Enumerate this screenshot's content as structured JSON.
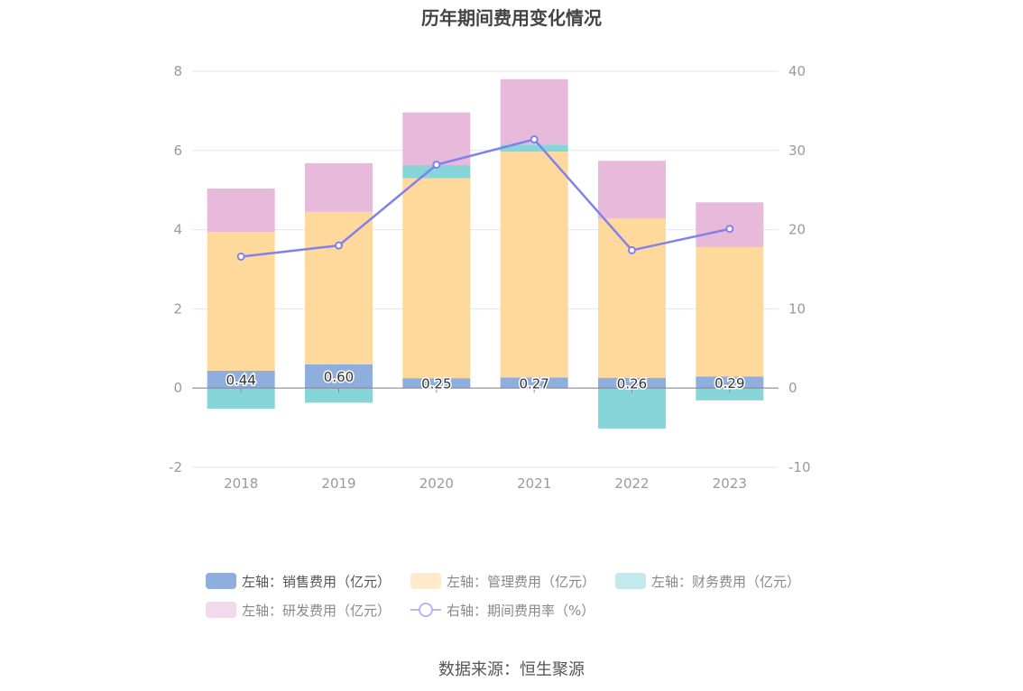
{
  "title": "历年期间费用变化情况",
  "source": "数据来源：恒生聚源",
  "colors": {
    "sales": "#8eaedd",
    "admin": "#ffd99c",
    "finance": "#86d5d9",
    "rd": "#e7b9db",
    "ratio": "#8080ee",
    "grid": "#e3e3f3",
    "axis_text": "#9a9a9a"
  },
  "legend": [
    {
      "label": "左轴：销售费用（亿元）",
      "color": "#8eaedd",
      "type": "bar",
      "active": true
    },
    {
      "label": "左轴：管理费用（亿元）",
      "color": "#ffeacb",
      "type": "bar",
      "active": false
    },
    {
      "label": "左轴：财务费用（亿元）",
      "color": "#c2eaec",
      "type": "bar",
      "active": false
    },
    {
      "label": "左轴：研发费用（亿元）",
      "color": "#f3d9ec",
      "type": "bar",
      "active": false
    },
    {
      "label": "右轴：期间费用率（%）",
      "color": "#b8b6f4",
      "type": "line",
      "active": false
    }
  ],
  "chart_data": {
    "type": "bar",
    "stacked": true,
    "categories": [
      "2018",
      "2019",
      "2020",
      "2021",
      "2022",
      "2023"
    ],
    "y_left": {
      "min": -2,
      "max": 8,
      "ticks": [
        "-2",
        "0",
        "2",
        "4",
        "6",
        "8"
      ]
    },
    "y_right": {
      "min": -10,
      "max": 40,
      "ticks": [
        "-10",
        "0",
        "10",
        "20",
        "30",
        "40"
      ]
    },
    "series": [
      {
        "name": "左轴：销售费用（亿元）",
        "axis": "left",
        "type": "bar",
        "values": [
          0.44,
          0.6,
          0.25,
          0.27,
          0.26,
          0.29
        ],
        "labels": [
          "0.44",
          "0.60",
          "0.25",
          "0.27",
          "0.26",
          "0.29"
        ]
      },
      {
        "name": "左轴：管理费用（亿元）",
        "axis": "left",
        "type": "bar",
        "values": [
          3.5,
          3.85,
          5.05,
          5.7,
          4.02,
          3.27
        ]
      },
      {
        "name": "左轴：财务费用（亿元）",
        "axis": "left",
        "type": "bar",
        "values": [
          -0.52,
          -0.37,
          0.33,
          0.18,
          -1.02,
          -0.31
        ]
      },
      {
        "name": "左轴：研发费用（亿元）",
        "axis": "left",
        "type": "bar",
        "values": [
          1.1,
          1.23,
          1.33,
          1.65,
          1.46,
          1.13
        ]
      },
      {
        "name": "右轴：期间费用率（%）",
        "axis": "right",
        "type": "line",
        "values": [
          16.6,
          18.0,
          28.2,
          31.4,
          17.4,
          20.1
        ]
      }
    ],
    "legend_position": "bottom",
    "grid": true
  }
}
